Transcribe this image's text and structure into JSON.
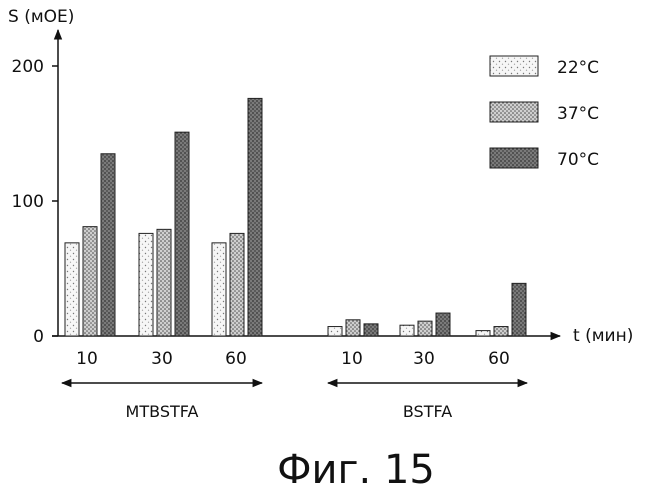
{
  "chart_data": {
    "type": "bar",
    "ylabel": "S (мОЕ)",
    "xlabel": "t (мин)",
    "ylim": [
      0,
      220
    ],
    "yticks": [
      "0",
      "100",
      "200"
    ],
    "groups": [
      {
        "label": "MTBSTFA",
        "categories": [
          "10",
          "30",
          "60"
        ]
      },
      {
        "label": "BSTFA",
        "categories": [
          "10",
          "30",
          "60"
        ]
      }
    ],
    "categories": [
      "MTBSTFA 10",
      "MTBSTFA 30",
      "MTBSTFA 60",
      "BSTFA 10",
      "BSTFA 30",
      "BSTFA 60"
    ],
    "series": [
      {
        "name": "22°C",
        "color": "#eeeeee",
        "values": [
          69,
          76,
          69,
          7,
          8,
          4
        ]
      },
      {
        "name": "37°C",
        "color": "#bdbdbd",
        "values": [
          81,
          79,
          76,
          12,
          11,
          7
        ]
      },
      {
        "name": "70°C",
        "color": "#6e6e6e",
        "values": [
          135,
          151,
          176,
          9,
          17,
          39
        ]
      }
    ]
  },
  "caption": "Фиг. 15"
}
